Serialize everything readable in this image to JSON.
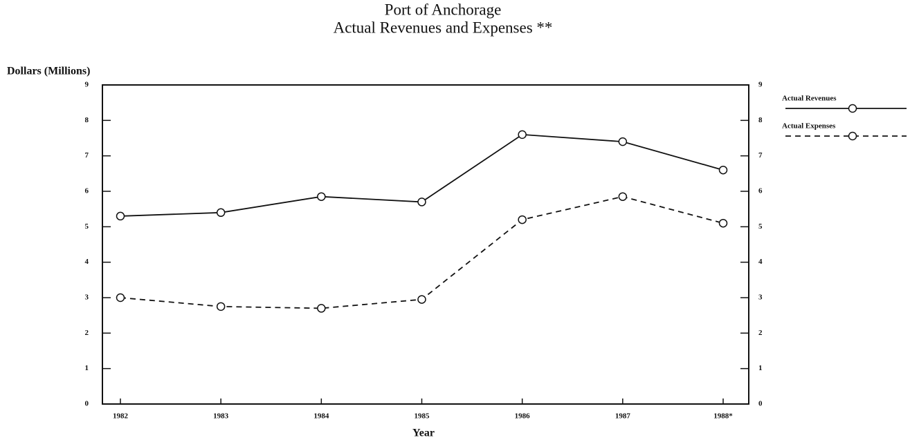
{
  "chart_data": {
    "type": "line",
    "title": "Port of Anchorage",
    "subtitle": "Actual Revenues and Expenses **",
    "ylabel": "Dollars (Millions)",
    "xlabel": "Year",
    "categories": [
      "1982",
      "1983",
      "1984",
      "1985",
      "1986",
      "1987",
      "1988*"
    ],
    "series": [
      {
        "name": "Actual Revenues",
        "color": "#111111",
        "style": "solid",
        "values": [
          5.3,
          5.4,
          5.85,
          5.7,
          7.6,
          7.4,
          6.6
        ]
      },
      {
        "name": "Actual Expenses",
        "color": "#111111",
        "style": "dashed",
        "values": [
          3.0,
          2.75,
          2.7,
          2.95,
          5.2,
          5.85,
          5.1
        ]
      }
    ],
    "ylim": [
      0,
      9
    ],
    "yticks": [
      0,
      1,
      2,
      3,
      4,
      5,
      6,
      7,
      8,
      9
    ],
    "y2lim": [
      0,
      9
    ],
    "y2ticks": [
      0,
      1,
      2,
      3,
      4,
      5,
      6,
      7,
      8,
      9
    ],
    "legend": "right",
    "grid": false
  }
}
